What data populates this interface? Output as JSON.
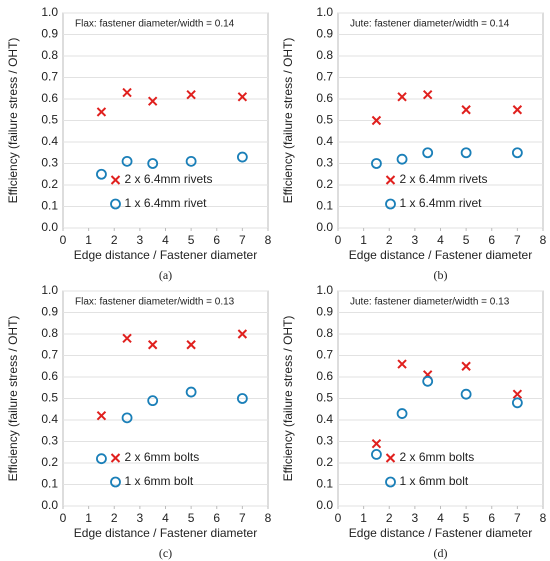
{
  "chart_data": [
    {
      "type": "scatter",
      "annotation": "Flax: fastener diameter/width = 0.14",
      "xlabel": "Edge distance / Fastener diameter",
      "ylabel": "Efficiency (failure stress / OHT)",
      "caption": "(a)",
      "legend": "lower center",
      "grid": true,
      "xlim": [
        0,
        8
      ],
      "ylim": [
        0,
        1
      ],
      "xticks": [
        0,
        1,
        2,
        3,
        4,
        5,
        6,
        7,
        8
      ],
      "yticks": [
        {
          "value": 0,
          "label": "0.0"
        },
        0.1,
        0.2,
        0.3,
        0.4,
        0.5,
        0.6,
        0.7,
        0.8,
        0.9,
        {
          "value": 1,
          "label": "1.0"
        }
      ],
      "series": [
        {
          "name": "2 x 6.4mm rivets",
          "color": "#e0201e",
          "marker": "x",
          "x": [
            1.5,
            2.5,
            3.5,
            5,
            7
          ],
          "values": [
            0.54,
            0.63,
            0.59,
            0.62,
            0.61
          ]
        },
        {
          "name": "1 x 6.4mm rivet",
          "color": "#1a7fb8",
          "marker": "o",
          "x": [
            1.5,
            2.5,
            3.5,
            5,
            7
          ],
          "values": [
            0.25,
            0.31,
            0.3,
            0.31,
            0.33
          ]
        }
      ]
    },
    {
      "type": "scatter",
      "annotation": "Jute: fastener diameter/width = 0.14",
      "xlabel": "Edge distance / Fastener diameter",
      "ylabel": "Efficiency (failure stress / OHT)",
      "caption": "(b)",
      "legend": "lower center",
      "grid": true,
      "xlim": [
        0,
        8
      ],
      "ylim": [
        0,
        1
      ],
      "xticks": [
        0,
        1,
        2,
        3,
        4,
        5,
        6,
        7,
        8
      ],
      "yticks": [
        {
          "value": 0,
          "label": "0.0"
        },
        0.1,
        0.2,
        0.3,
        0.4,
        0.5,
        0.6,
        0.7,
        0.8,
        0.9,
        {
          "value": 1,
          "label": "1.0"
        }
      ],
      "series": [
        {
          "name": "2 x 6.4mm rivets",
          "color": "#e0201e",
          "marker": "x",
          "x": [
            1.5,
            2.5,
            3.5,
            5,
            7
          ],
          "values": [
            0.5,
            0.61,
            0.62,
            0.55,
            0.55
          ]
        },
        {
          "name": "1 x 6.4mm rivet",
          "color": "#1a7fb8",
          "marker": "o",
          "x": [
            1.5,
            2.5,
            3.5,
            5,
            7
          ],
          "values": [
            0.3,
            0.32,
            0.35,
            0.35,
            0.35
          ]
        }
      ]
    },
    {
      "type": "scatter",
      "annotation": "Flax: fastener diameter/width = 0.13",
      "xlabel": "Edge distance / Fastener diameter",
      "ylabel": "Efficiency (failure stress / OHT)",
      "caption": "(c)",
      "legend": "lower center",
      "grid": true,
      "xlim": [
        0,
        8
      ],
      "ylim": [
        0,
        1
      ],
      "xticks": [
        0,
        1,
        2,
        3,
        4,
        5,
        6,
        7,
        8
      ],
      "yticks": [
        {
          "value": 0,
          "label": "0.0"
        },
        0.1,
        0.2,
        0.3,
        0.4,
        0.5,
        0.6,
        0.7,
        0.8,
        0.9,
        {
          "value": 1,
          "label": "1.0"
        }
      ],
      "series": [
        {
          "name": "2 x 6mm bolts",
          "color": "#e0201e",
          "marker": "x",
          "x": [
            1.5,
            2.5,
            3.5,
            5,
            7
          ],
          "values": [
            0.42,
            0.78,
            0.75,
            0.75,
            0.8
          ]
        },
        {
          "name": "1 x 6mm bolt",
          "color": "#1a7fb8",
          "marker": "o",
          "x": [
            1.5,
            2.5,
            3.5,
            5,
            7
          ],
          "values": [
            0.22,
            0.41,
            0.49,
            0.53,
            0.5
          ]
        }
      ]
    },
    {
      "type": "scatter",
      "annotation": "Jute: fastener diameter/width = 0.13",
      "xlabel": "Edge distance / Fastener diameter",
      "ylabel": "Efficiency (failure stress / OHT)",
      "caption": "(d)",
      "legend": "lower center",
      "grid": true,
      "xlim": [
        0,
        8
      ],
      "ylim": [
        0,
        1
      ],
      "xticks": [
        0,
        1,
        2,
        3,
        4,
        5,
        6,
        7,
        8
      ],
      "yticks": [
        {
          "value": 0,
          "label": "0.0"
        },
        0.1,
        0.2,
        0.3,
        0.4,
        0.5,
        0.6,
        0.7,
        0.8,
        0.9,
        {
          "value": 1,
          "label": "1.0"
        }
      ],
      "series": [
        {
          "name": "2 x 6mm bolts",
          "color": "#e0201e",
          "marker": "x",
          "x": [
            1.5,
            2.5,
            3.5,
            5,
            7
          ],
          "values": [
            0.29,
            0.66,
            0.61,
            0.65,
            0.52
          ]
        },
        {
          "name": "1 x 6mm bolt",
          "color": "#1a7fb8",
          "marker": "o",
          "x": [
            1.5,
            2.5,
            3.5,
            5,
            7
          ],
          "values": [
            0.24,
            0.43,
            0.58,
            0.52,
            0.48
          ]
        }
      ]
    }
  ]
}
